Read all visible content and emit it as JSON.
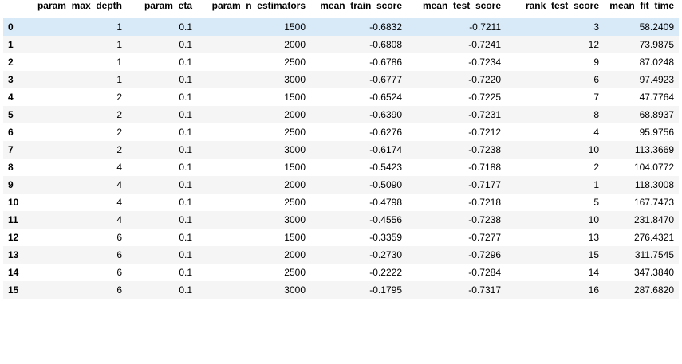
{
  "table": {
    "columns": [
      "",
      "param_max_depth",
      "param_eta",
      "param_n_estimators",
      "mean_train_score",
      "mean_test_score",
      "rank_test_score",
      "mean_fit_time"
    ],
    "rows": [
      [
        "0",
        "1",
        "0.1",
        "1500",
        "-0.6832",
        "-0.7211",
        "3",
        "58.2409"
      ],
      [
        "1",
        "1",
        "0.1",
        "2000",
        "-0.6808",
        "-0.7241",
        "12",
        "73.9875"
      ],
      [
        "2",
        "1",
        "0.1",
        "2500",
        "-0.6786",
        "-0.7234",
        "9",
        "87.0248"
      ],
      [
        "3",
        "1",
        "0.1",
        "3000",
        "-0.6777",
        "-0.7220",
        "6",
        "97.4923"
      ],
      [
        "4",
        "2",
        "0.1",
        "1500",
        "-0.6524",
        "-0.7225",
        "7",
        "47.7764"
      ],
      [
        "5",
        "2",
        "0.1",
        "2000",
        "-0.6390",
        "-0.7231",
        "8",
        "68.8937"
      ],
      [
        "6",
        "2",
        "0.1",
        "2500",
        "-0.6276",
        "-0.7212",
        "4",
        "95.9756"
      ],
      [
        "7",
        "2",
        "0.1",
        "3000",
        "-0.6174",
        "-0.7238",
        "10",
        "113.3669"
      ],
      [
        "8",
        "4",
        "0.1",
        "1500",
        "-0.5423",
        "-0.7188",
        "2",
        "104.0772"
      ],
      [
        "9",
        "4",
        "0.1",
        "2000",
        "-0.5090",
        "-0.7177",
        "1",
        "118.3008"
      ],
      [
        "10",
        "4",
        "0.1",
        "2500",
        "-0.4798",
        "-0.7218",
        "5",
        "167.7473"
      ],
      [
        "11",
        "4",
        "0.1",
        "3000",
        "-0.4556",
        "-0.7238",
        "10",
        "231.8470"
      ],
      [
        "12",
        "6",
        "0.1",
        "1500",
        "-0.3359",
        "-0.7277",
        "13",
        "276.4321"
      ],
      [
        "13",
        "6",
        "0.1",
        "2000",
        "-0.2730",
        "-0.7296",
        "15",
        "311.7545"
      ],
      [
        "14",
        "6",
        "0.1",
        "2500",
        "-0.2222",
        "-0.7284",
        "14",
        "347.3840"
      ],
      [
        "15",
        "6",
        "0.1",
        "3000",
        "-0.1795",
        "-0.7317",
        "16",
        "287.6820"
      ]
    ],
    "selected_row": 0
  },
  "colors": {
    "selected_row_bg": "#d8e9f8",
    "striped_row_bg": "#f5f5f5"
  }
}
